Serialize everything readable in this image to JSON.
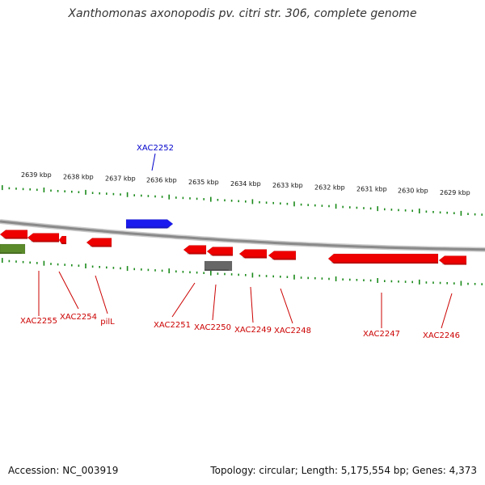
{
  "title": "Xanthomonas axonopodis pv. citri str. 306, complete genome",
  "footer": {
    "accession": "Accession: NC_003919",
    "topology": "Topology: circular; Length: 5,175,554 bp; Genes: 4,373"
  },
  "colors": {
    "forward_gene": "#1a1aee",
    "reverse_gene": "#ee0000",
    "pseudo_gene": "#666666",
    "rna_gene": "#5a8a2a",
    "ticks": "#1a8a1a",
    "backbone": "#999999",
    "forward_label": "#0000cc",
    "reverse_label": "#cc0000"
  },
  "axis": {
    "ticks_kbp": [
      "2639 kbp",
      "2638 kbp",
      "2637 kbp",
      "2636 kbp",
      "2635 kbp",
      "2634 kbp",
      "2633 kbp",
      "2632 kbp",
      "2631 kbp",
      "2630 kbp",
      "2629 kbp"
    ]
  },
  "genes": [
    {
      "id": "XAC2252",
      "label": "XAC2252",
      "strand": "forward",
      "type": "gene"
    },
    {
      "id": "XAC2255",
      "label": "XAC2255",
      "strand": "reverse",
      "type": "gene"
    },
    {
      "id": "XAC2254",
      "label": "XAC2254",
      "strand": "reverse",
      "type": "gene"
    },
    {
      "id": "pilL",
      "label": "pilL",
      "strand": "reverse",
      "type": "gene"
    },
    {
      "id": "XAC2251",
      "label": "XAC2251",
      "strand": "reverse",
      "type": "gene"
    },
    {
      "id": "XAC2250",
      "label": "XAC2250",
      "strand": "reverse",
      "type": "gene"
    },
    {
      "id": "XAC2249",
      "label": "XAC2249",
      "strand": "reverse",
      "type": "gene"
    },
    {
      "id": "XAC2248",
      "label": "XAC2248",
      "strand": "reverse",
      "type": "gene"
    },
    {
      "id": "XAC2247",
      "label": "XAC2247",
      "strand": "reverse",
      "type": "gene"
    },
    {
      "id": "XAC2246",
      "label": "XAC2246",
      "strand": "reverse",
      "type": "gene"
    }
  ]
}
